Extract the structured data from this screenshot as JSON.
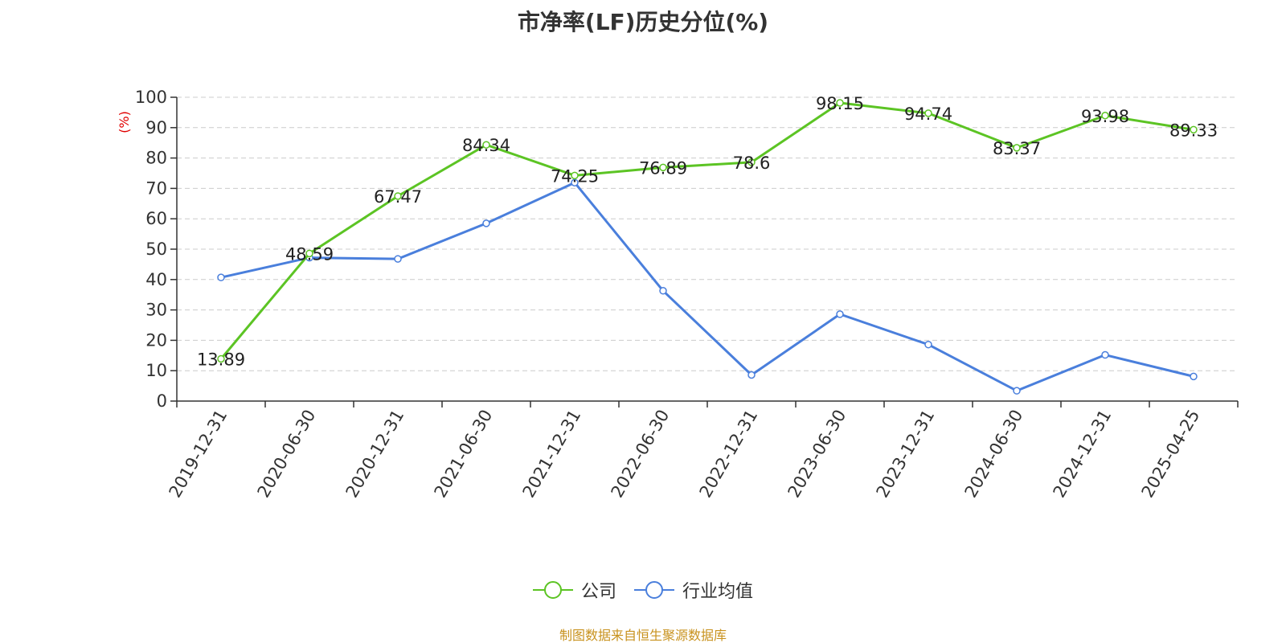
{
  "chart_data": {
    "type": "line",
    "title": "市净率(LF)历史分位(%)",
    "ylabel": "(%)",
    "xlabel": "",
    "ylim": [
      0,
      100
    ],
    "yticks": [
      0,
      10,
      20,
      30,
      40,
      50,
      60,
      70,
      80,
      90,
      100
    ],
    "grid": true,
    "legend_position": "bottom-center",
    "categories": [
      "2019-12-31",
      "2020-06-30",
      "2020-12-31",
      "2021-06-30",
      "2021-12-31",
      "2022-06-30",
      "2022-12-31",
      "2023-06-30",
      "2023-12-31",
      "2024-06-30",
      "2024-12-31",
      "2025-04-25"
    ],
    "series": [
      {
        "name": "公司",
        "color": "#5cc424",
        "show_labels": true,
        "values": [
          13.89,
          48.59,
          67.47,
          84.34,
          74.25,
          76.89,
          78.6,
          98.15,
          94.74,
          83.37,
          93.98,
          89.33
        ]
      },
      {
        "name": "行业均值",
        "color": "#4a7fdc",
        "show_labels": false,
        "values": [
          40.7,
          47.2,
          46.8,
          58.5,
          71.9,
          36.3,
          8.6,
          28.6,
          18.6,
          3.4,
          15.2,
          8.1
        ]
      }
    ],
    "source": "制图数据来自恒生聚源数据库"
  }
}
